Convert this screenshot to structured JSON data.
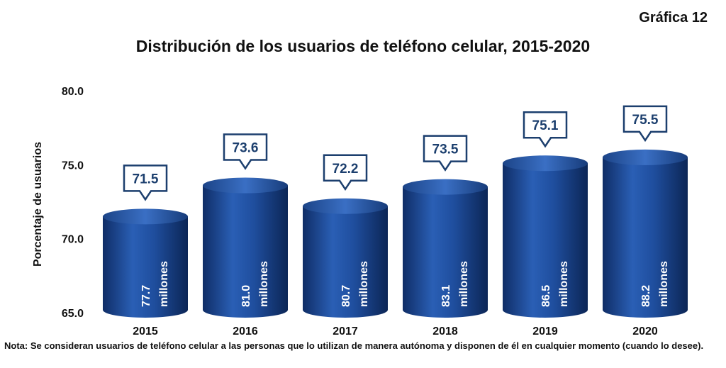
{
  "figure_label": "Gráfica 12",
  "note": "Nota: Se consideran usuarios de teléfono celular a las personas que lo utilizan de manera autónoma y disponen de él en cualquier momento (cuando lo desee).",
  "chart_data": {
    "type": "bar",
    "title": "Distribución de los usuarios de teléfono celular, 2015-2020",
    "xlabel": "",
    "ylabel": "Porcentaje de usuarios",
    "ylim": [
      65.0,
      80.0
    ],
    "yticks": [
      "65.0",
      "70.0",
      "75.0",
      "80.0"
    ],
    "grid": false,
    "categories": [
      "2015",
      "2016",
      "2017",
      "2018",
      "2019",
      "2020"
    ],
    "values": [
      71.5,
      73.6,
      72.2,
      73.5,
      75.1,
      75.5
    ],
    "value_labels": [
      "71.5",
      "73.6",
      "72.2",
      "73.5",
      "75.1",
      "75.5"
    ],
    "bar_amounts": [
      "77.7",
      "81.0",
      "80.7",
      "83.1",
      "86.5",
      "88.2"
    ],
    "bar_unit": "millones",
    "colors": {
      "bar": "#1f4e9e",
      "bar_dark": "#0f2d66",
      "callout_border": "#1c3f6e",
      "callout_text": "#1c3f6e"
    }
  }
}
